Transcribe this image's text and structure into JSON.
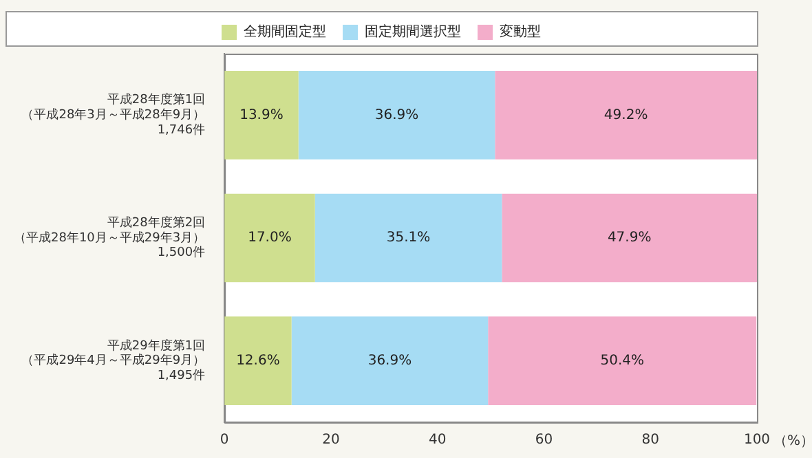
{
  "chart_data": {
    "type": "bar",
    "orientation": "horizontal",
    "stacked": true,
    "categories": [
      "平成28年度第1回（平成28年3月～平成28年9月）1,746件",
      "平成28年度第2回（平成28年10月～平成29年3月）1,500件",
      "平成29年度第1回（平成29年4月～平成29年9月）1,495件"
    ],
    "series": [
      {
        "name": "全期間固定型",
        "color": "#cfdf8f",
        "values": [
          13.9,
          17.0,
          12.6
        ],
        "value_labels": [
          "13.9%",
          "17.0%",
          "12.6%"
        ]
      },
      {
        "name": "固定期間選択型",
        "color": "#a6dcf4",
        "values": [
          36.9,
          35.1,
          36.9
        ],
        "value_labels": [
          "36.9%",
          "35.1%",
          "36.9%"
        ]
      },
      {
        "name": "変動型",
        "color": "#f3adca",
        "values": [
          49.2,
          47.9,
          50.4
        ],
        "value_labels": [
          "49.2%",
          "47.9%",
          "50.4%"
        ]
      }
    ],
    "xlim": [
      0,
      100
    ],
    "xticks": [
      0,
      20,
      40,
      60,
      80,
      100
    ],
    "xlabel": "（%）",
    "grid": false,
    "legend": "top"
  }
}
